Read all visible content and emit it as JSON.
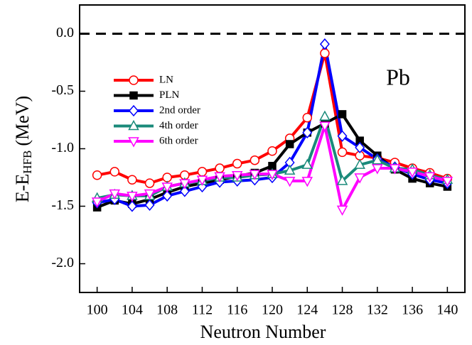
{
  "chart_data": {
    "type": "line",
    "xlabel": "Neutron Number",
    "ylabel": {
      "main": "E-E",
      "sub": "HFB",
      "unit": "(MeV)"
    },
    "annotation": "Pb",
    "x": [
      100,
      102,
      104,
      106,
      108,
      110,
      112,
      114,
      116,
      118,
      120,
      122,
      124,
      126,
      128,
      130,
      132,
      134,
      136,
      138,
      140
    ],
    "xlim": [
      98,
      142
    ],
    "xticks": [
      100,
      104,
      108,
      112,
      116,
      120,
      124,
      128,
      132,
      136,
      140
    ],
    "ylim": [
      -2.25,
      0.25
    ],
    "yticks": [
      {
        "value": -2,
        "label": "-2.0"
      },
      -1.5,
      {
        "value": -1,
        "label": "-1.0"
      },
      -0.5,
      {
        "value": 0,
        "label": "0.0"
      }
    ],
    "reference_line": 0,
    "legend": "upper left",
    "series": [
      {
        "name": "LN",
        "color": "#ff0000",
        "marker": "circle",
        "values": [
          -1.23,
          -1.2,
          -1.27,
          -1.3,
          -1.25,
          -1.23,
          -1.2,
          -1.17,
          -1.13,
          -1.1,
          -1.02,
          -0.91,
          -0.73,
          -0.17,
          -1.03,
          -1.06,
          -1.08,
          -1.12,
          -1.17,
          -1.21,
          -1.26
        ]
      },
      {
        "name": "PLN",
        "color": "#000000",
        "marker": "square",
        "values": [
          -1.51,
          -1.45,
          -1.48,
          -1.44,
          -1.38,
          -1.33,
          -1.3,
          -1.27,
          -1.24,
          -1.21,
          -1.15,
          -0.96,
          -0.86,
          -0.78,
          -0.7,
          -0.93,
          -1.06,
          -1.18,
          -1.26,
          -1.3,
          -1.33
        ]
      },
      {
        "name": "2nd order",
        "color": "#0000ff",
        "marker": "diamond",
        "values": [
          -1.47,
          -1.44,
          -1.5,
          -1.49,
          -1.41,
          -1.37,
          -1.33,
          -1.29,
          -1.28,
          -1.27,
          -1.25,
          -1.12,
          -0.86,
          -0.09,
          -0.89,
          -0.99,
          -1.09,
          -1.16,
          -1.22,
          -1.27,
          -1.3
        ]
      },
      {
        "name": "4th order",
        "color": "#1a8a7a",
        "marker": "triangle-up",
        "values": [
          -1.43,
          -1.4,
          -1.41,
          -1.41,
          -1.33,
          -1.3,
          -1.28,
          -1.25,
          -1.25,
          -1.23,
          -1.22,
          -1.19,
          -1.14,
          -0.72,
          -1.28,
          -1.14,
          -1.1,
          -1.17,
          -1.18,
          -1.23,
          -1.27
        ]
      },
      {
        "name": "6th order",
        "color": "#ff00ff",
        "marker": "triangle-down",
        "values": [
          -1.46,
          -1.39,
          -1.41,
          -1.39,
          -1.33,
          -1.3,
          -1.27,
          -1.24,
          -1.23,
          -1.22,
          -1.22,
          -1.28,
          -1.28,
          -0.8,
          -1.53,
          -1.25,
          -1.17,
          -1.17,
          -1.2,
          -1.24,
          -1.28
        ]
      }
    ]
  }
}
